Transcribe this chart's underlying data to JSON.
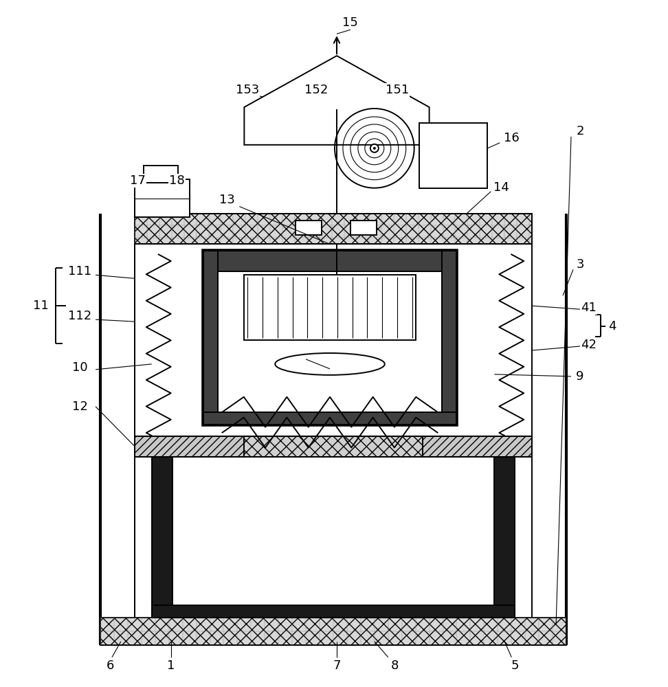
{
  "bg_color": "#ffffff",
  "line_color": "#000000",
  "fig_width": 9.72,
  "fig_height": 10.0,
  "lw_main": 1.4,
  "lw_thick": 3.0,
  "lw_thin": 0.8,
  "fs": 13
}
